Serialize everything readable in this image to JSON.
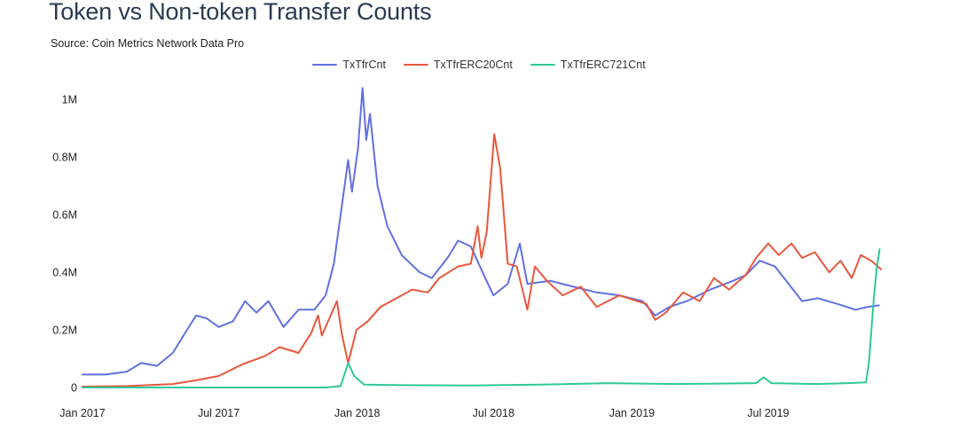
{
  "header": {
    "title": "Token vs Non-token Transfer Counts",
    "source": "Source: Coin Metrics Network Data Pro"
  },
  "chart_data": {
    "type": "line",
    "title": "Token vs Non-token Transfer Counts",
    "subtitle": "Source: Coin Metrics Network Data Pro",
    "xlabel": "",
    "ylabel": "",
    "x_range": [
      "2017-01-01",
      "2019-11-30"
    ],
    "ylim": [
      0,
      1050000
    ],
    "y_ticks": [
      {
        "value": 0,
        "label": "0"
      },
      {
        "value": 200000,
        "label": "0.2M"
      },
      {
        "value": 400000,
        "label": "0.4M"
      },
      {
        "value": 600000,
        "label": "0.6M"
      },
      {
        "value": 800000,
        "label": "0.8M"
      },
      {
        "value": 1000000,
        "label": "1M"
      }
    ],
    "x_ticks": [
      {
        "value": "2017-01-01",
        "label": "Jan 2017"
      },
      {
        "value": "2017-07-01",
        "label": "Jul 2017"
      },
      {
        "value": "2018-01-01",
        "label": "Jan 2018"
      },
      {
        "value": "2018-07-01",
        "label": "Jul 2018"
      },
      {
        "value": "2019-01-01",
        "label": "Jan 2019"
      },
      {
        "value": "2019-07-01",
        "label": "Jul 2019"
      }
    ],
    "grid": false,
    "legend_position": "top-center",
    "series": [
      {
        "name": "TxTfrCnt",
        "color": "#6170e0",
        "points": [
          [
            "2017-01-01",
            45000
          ],
          [
            "2017-02-01",
            45000
          ],
          [
            "2017-03-01",
            55000
          ],
          [
            "2017-03-20",
            85000
          ],
          [
            "2017-04-10",
            75000
          ],
          [
            "2017-05-01",
            120000
          ],
          [
            "2017-05-20",
            200000
          ],
          [
            "2017-06-01",
            250000
          ],
          [
            "2017-06-15",
            240000
          ],
          [
            "2017-07-01",
            210000
          ],
          [
            "2017-07-20",
            230000
          ],
          [
            "2017-08-05",
            300000
          ],
          [
            "2017-08-20",
            260000
          ],
          [
            "2017-09-05",
            300000
          ],
          [
            "2017-09-25",
            210000
          ],
          [
            "2017-10-15",
            270000
          ],
          [
            "2017-11-05",
            270000
          ],
          [
            "2017-11-20",
            320000
          ],
          [
            "2017-12-01",
            430000
          ],
          [
            "2017-12-10",
            600000
          ],
          [
            "2017-12-20",
            790000
          ],
          [
            "2017-12-25",
            680000
          ],
          [
            "2018-01-02",
            830000
          ],
          [
            "2018-01-08",
            1040000
          ],
          [
            "2018-01-13",
            860000
          ],
          [
            "2018-01-18",
            950000
          ],
          [
            "2018-01-28",
            700000
          ],
          [
            "2018-02-10",
            560000
          ],
          [
            "2018-03-01",
            460000
          ],
          [
            "2018-03-25",
            400000
          ],
          [
            "2018-04-10",
            380000
          ],
          [
            "2018-05-01",
            450000
          ],
          [
            "2018-05-15",
            510000
          ],
          [
            "2018-06-01",
            490000
          ],
          [
            "2018-06-20",
            380000
          ],
          [
            "2018-07-01",
            320000
          ],
          [
            "2018-07-20",
            360000
          ],
          [
            "2018-08-05",
            500000
          ],
          [
            "2018-08-15",
            360000
          ],
          [
            "2018-09-15",
            370000
          ],
          [
            "2018-10-15",
            350000
          ],
          [
            "2018-11-15",
            330000
          ],
          [
            "2018-12-15",
            320000
          ],
          [
            "2019-01-15",
            300000
          ],
          [
            "2019-02-01",
            250000
          ],
          [
            "2019-02-20",
            280000
          ],
          [
            "2019-03-15",
            300000
          ],
          [
            "2019-04-15",
            340000
          ],
          [
            "2019-05-15",
            370000
          ],
          [
            "2019-06-01",
            390000
          ],
          [
            "2019-06-20",
            440000
          ],
          [
            "2019-07-10",
            420000
          ],
          [
            "2019-07-25",
            370000
          ],
          [
            "2019-08-15",
            300000
          ],
          [
            "2019-09-05",
            310000
          ],
          [
            "2019-10-01",
            290000
          ],
          [
            "2019-10-25",
            270000
          ],
          [
            "2019-11-10",
            280000
          ],
          [
            "2019-11-25",
            285000
          ]
        ]
      },
      {
        "name": "TxTfrERC20Cnt",
        "color": "#e8583d",
        "points": [
          [
            "2017-01-01",
            3000
          ],
          [
            "2017-03-01",
            5000
          ],
          [
            "2017-05-01",
            12000
          ],
          [
            "2017-06-01",
            25000
          ],
          [
            "2017-07-01",
            40000
          ],
          [
            "2017-08-01",
            80000
          ],
          [
            "2017-09-01",
            110000
          ],
          [
            "2017-09-20",
            140000
          ],
          [
            "2017-10-15",
            120000
          ],
          [
            "2017-11-01",
            190000
          ],
          [
            "2017-11-10",
            250000
          ],
          [
            "2017-11-15",
            180000
          ],
          [
            "2017-12-05",
            300000
          ],
          [
            "2017-12-12",
            180000
          ],
          [
            "2017-12-20",
            85000
          ],
          [
            "2017-12-31",
            200000
          ],
          [
            "2018-01-15",
            230000
          ],
          [
            "2018-02-01",
            280000
          ],
          [
            "2018-03-01",
            320000
          ],
          [
            "2018-03-15",
            340000
          ],
          [
            "2018-04-05",
            330000
          ],
          [
            "2018-04-20",
            380000
          ],
          [
            "2018-05-15",
            420000
          ],
          [
            "2018-06-01",
            430000
          ],
          [
            "2018-06-10",
            560000
          ],
          [
            "2018-06-15",
            450000
          ],
          [
            "2018-06-22",
            540000
          ],
          [
            "2018-07-02",
            880000
          ],
          [
            "2018-07-10",
            760000
          ],
          [
            "2018-07-20",
            430000
          ],
          [
            "2018-08-01",
            420000
          ],
          [
            "2018-08-15",
            270000
          ],
          [
            "2018-08-25",
            420000
          ],
          [
            "2018-09-10",
            370000
          ],
          [
            "2018-10-01",
            320000
          ],
          [
            "2018-10-25",
            350000
          ],
          [
            "2018-11-15",
            280000
          ],
          [
            "2018-12-15",
            320000
          ],
          [
            "2019-01-20",
            290000
          ],
          [
            "2019-02-01",
            235000
          ],
          [
            "2019-02-15",
            260000
          ],
          [
            "2019-03-10",
            330000
          ],
          [
            "2019-04-01",
            300000
          ],
          [
            "2019-04-20",
            380000
          ],
          [
            "2019-05-10",
            340000
          ],
          [
            "2019-06-01",
            390000
          ],
          [
            "2019-06-15",
            450000
          ],
          [
            "2019-07-01",
            500000
          ],
          [
            "2019-07-15",
            460000
          ],
          [
            "2019-08-01",
            500000
          ],
          [
            "2019-08-15",
            450000
          ],
          [
            "2019-09-01",
            470000
          ],
          [
            "2019-09-20",
            400000
          ],
          [
            "2019-10-05",
            440000
          ],
          [
            "2019-10-20",
            380000
          ],
          [
            "2019-11-01",
            460000
          ],
          [
            "2019-11-15",
            440000
          ],
          [
            "2019-11-28",
            410000
          ]
        ]
      },
      {
        "name": "TxTfrERC721Cnt",
        "color": "#2ec99a",
        "points": [
          [
            "2017-01-01",
            0
          ],
          [
            "2017-11-20",
            0
          ],
          [
            "2017-12-10",
            5000
          ],
          [
            "2017-12-20",
            85000
          ],
          [
            "2017-12-28",
            40000
          ],
          [
            "2018-01-10",
            10000
          ],
          [
            "2018-03-01",
            8000
          ],
          [
            "2018-06-01",
            7000
          ],
          [
            "2018-09-01",
            10000
          ],
          [
            "2018-12-01",
            15000
          ],
          [
            "2019-03-01",
            12000
          ],
          [
            "2019-06-15",
            15000
          ],
          [
            "2019-06-25",
            35000
          ],
          [
            "2019-07-05",
            15000
          ],
          [
            "2019-09-01",
            12000
          ],
          [
            "2019-10-15",
            15000
          ],
          [
            "2019-11-08",
            18000
          ],
          [
            "2019-11-12",
            90000
          ],
          [
            "2019-11-18",
            300000
          ],
          [
            "2019-11-22",
            410000
          ],
          [
            "2019-11-26",
            480000
          ]
        ]
      }
    ]
  }
}
